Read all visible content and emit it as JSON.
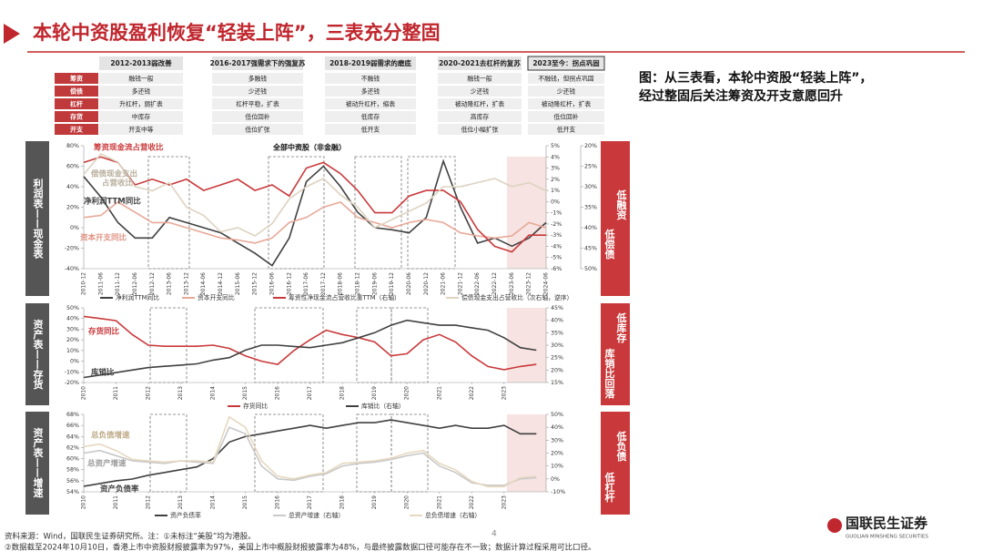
{
  "header": {
    "title": "本轮中资股盈利恢复“轻装上阵”，三表充分整固"
  },
  "periods": [
    "2012-2013弱改善",
    "2016-2017强需求下的强复苏",
    "2018-2019弱需求的磨底",
    "2020-2021去杠杆的复苏",
    "2023至今：拐点巩固"
  ],
  "table": {
    "row_labels": [
      "筹资",
      "偿债",
      "杠杆",
      "存货",
      "开支"
    ],
    "rows": [
      [
        "融钱一般",
        "多融钱",
        "不融钱",
        "融钱一般",
        "不融钱，但拐点巩固"
      ],
      [
        "多还钱",
        "少还钱",
        "多还钱",
        "少还钱",
        "少还钱"
      ],
      [
        "升杠杆，弱扩表",
        "杠杆平稳，扩表",
        "被动升杠杆，缩表",
        "被动降杠杆，扩表",
        "被动降杠杆，扩表"
      ],
      [
        "中库存",
        "低位回补",
        "低库存",
        "高库存",
        "低位回补"
      ],
      [
        "开支中等",
        "低位扩张",
        "低开支",
        "低位小幅扩张",
        "低开支"
      ]
    ]
  },
  "caption": [
    "图：从三表看，本轮中资股“轻装上阵”，",
    "经过整固后关注筹资及开支意愿回升"
  ],
  "side_labels": {
    "left": [
      "利润表——现金表",
      "资产表——存货",
      "资产表——增速"
    ],
    "right": [
      [
        "低融资",
        "低偿债"
      ],
      [
        "低库存",
        "库销比回落"
      ],
      [
        "低负债",
        "低杠杆"
      ]
    ]
  },
  "chart_data": [
    {
      "type": "line",
      "title": "全部中资股（非金融）",
      "categories": [
        "2010-12",
        "2011-06",
        "2011-12",
        "2012-06",
        "2012-12",
        "2013-06",
        "2013-12",
        "2014-06",
        "2014-12",
        "2015-06",
        "2015-12",
        "2016-06",
        "2016-12",
        "2017-06",
        "2017-12",
        "2018-06",
        "2018-12",
        "2019-06",
        "2019-12",
        "2020-06",
        "2020-12",
        "2021-06",
        "2021-12",
        "2022-06",
        "2022-12",
        "2023-06",
        "2023-12",
        "2024-06"
      ],
      "ylim": [
        -40,
        80
      ],
      "yticks": [
        {
          "value": -40,
          "label": "-40%"
        },
        {
          "value": -20,
          "label": "-20%"
        },
        {
          "value": 0,
          "label": "0%"
        },
        {
          "value": 20,
          "label": "20%"
        },
        {
          "value": 40,
          "label": "40%"
        },
        {
          "value": 60,
          "label": "60%"
        },
        {
          "value": 80,
          "label": "80%"
        }
      ],
      "y2lim": [
        -6,
        5
      ],
      "y2ticks": [
        {
          "value": 5,
          "label": "5%"
        },
        {
          "value": 4,
          "label": "4%"
        },
        {
          "value": 3,
          "label": "3%"
        },
        {
          "value": 2,
          "label": "2%"
        },
        {
          "value": 1,
          "label": "1%"
        },
        {
          "value": 0,
          "label": "0%"
        },
        {
          "value": -1,
          "label": "-1%"
        },
        {
          "value": -2,
          "label": "-2%"
        },
        {
          "value": -3,
          "label": "-3%"
        },
        {
          "value": -4,
          "label": "-4%"
        },
        {
          "value": -5,
          "label": "-5%"
        },
        {
          "value": -6,
          "label": "-6%"
        }
      ],
      "y3lim": [
        50,
        20
      ],
      "y3ticks": [
        {
          "value": 20,
          "label": "20%"
        },
        {
          "value": 25,
          "label": "25%"
        },
        {
          "value": 30,
          "label": "30%"
        },
        {
          "value": 35,
          "label": "35%"
        },
        {
          "value": 40,
          "label": "40%"
        },
        {
          "value": 45,
          "label": "45%"
        },
        {
          "value": 50,
          "label": "50%"
        }
      ],
      "series": [
        {
          "name": "净利润TTM同比",
          "color": "#404040",
          "values": [
            50,
            30,
            5,
            -10,
            -10,
            10,
            5,
            0,
            -5,
            -15,
            -25,
            -37,
            -10,
            45,
            60,
            40,
            15,
            0,
            -2,
            -5,
            10,
            65,
            20,
            -15,
            -10,
            -18,
            -10,
            5
          ]
        },
        {
          "name": "资本开支同比",
          "color": "#e8a898",
          "values": [
            10,
            12,
            25,
            15,
            5,
            5,
            0,
            -5,
            -10,
            -12,
            -15,
            -10,
            5,
            10,
            20,
            25,
            10,
            5,
            0,
            5,
            8,
            5,
            -5,
            -8,
            -10,
            -8,
            5,
            0
          ]
        },
        {
          "name": "筹资性净现金流占营收比重TTM（右轴）",
          "color": "#c9393b",
          "axis": "y2",
          "values": [
            3.5,
            4,
            3.5,
            1.5,
            2,
            1.5,
            2,
            1,
            1.5,
            2,
            1,
            1.5,
            0.5,
            3,
            3.5,
            2.5,
            1,
            -1,
            -1,
            0.5,
            1,
            1,
            0,
            -2.5,
            -4,
            -4.5,
            -3,
            -3
          ]
        },
        {
          "name": "偿债现金支出占营收比（次右轴，逆序）",
          "color": "#ddd3c0",
          "axis": "y3",
          "values": [
            27,
            22,
            24,
            30,
            31,
            29,
            35,
            37,
            41,
            40,
            42,
            39,
            33,
            30,
            28,
            32,
            35,
            40,
            38,
            36,
            34,
            30,
            30,
            29,
            28,
            30,
            29,
            31
          ]
        }
      ],
      "annotations": [
        "筹资现金流占营收比",
        "偿债现金支出",
        "占营收比",
        "净利润TTM同比",
        "资本开支同比"
      ]
    },
    {
      "type": "line",
      "x": [
        2010,
        2010.5,
        2011,
        2011.5,
        2012,
        2012.5,
        2013,
        2013.5,
        2014,
        2014.5,
        2015,
        2015.5,
        2016,
        2016.5,
        2017,
        2017.5,
        2018,
        2018.5,
        2019,
        2019.5,
        2020,
        2020.5,
        2021,
        2021.5,
        2022,
        2022.5,
        2023,
        2023.5,
        2024
      ],
      "xlim": [
        2010,
        2024.3
      ],
      "xticks": [
        2010,
        2011,
        2012,
        2013,
        2014,
        2015,
        2016,
        2017,
        2018,
        2019,
        2020,
        2021,
        2022,
        2023
      ],
      "ylim": [
        -20,
        50
      ],
      "yticks": [
        {
          "value": -20,
          "label": "-20%"
        },
        {
          "value": -10,
          "label": "-10%"
        },
        {
          "value": 0,
          "label": "0%"
        },
        {
          "value": 10,
          "label": "10%"
        },
        {
          "value": 20,
          "label": "20%"
        },
        {
          "value": 30,
          "label": "30%"
        },
        {
          "value": 40,
          "label": "40%"
        },
        {
          "value": 50,
          "label": "50%"
        }
      ],
      "y2lim": [
        15,
        45
      ],
      "y2ticks": [
        {
          "value": 15,
          "label": "15%"
        },
        {
          "value": 20,
          "label": "20%"
        },
        {
          "value": 25,
          "label": "25%"
        },
        {
          "value": 30,
          "label": "30%"
        },
        {
          "value": 35,
          "label": "35%"
        },
        {
          "value": 40,
          "label": "40%"
        },
        {
          "value": 45,
          "label": "45%"
        }
      ],
      "series": [
        {
          "name": "存货同比",
          "color": "#c9393b",
          "values": [
            42,
            40,
            38,
            25,
            15,
            14,
            14,
            14,
            15,
            12,
            5,
            0,
            -3,
            10,
            20,
            29,
            25,
            22,
            18,
            5,
            7,
            20,
            25,
            18,
            5,
            -5,
            -8,
            -5,
            -3
          ]
        },
        {
          "name": "库销比（右轴）",
          "color": "#404040",
          "axis": "y2",
          "values": [
            17,
            18,
            19,
            20,
            21,
            21.5,
            22,
            22.5,
            24,
            25,
            28,
            30,
            30,
            29.5,
            29,
            30,
            31,
            33,
            35,
            38,
            40,
            39,
            38,
            38,
            37,
            36,
            33,
            29,
            28
          ]
        }
      ],
      "annotations": [
        "存货同比",
        "库销比"
      ]
    },
    {
      "type": "line",
      "x": [
        2010,
        2010.5,
        2011,
        2011.5,
        2012,
        2012.5,
        2013,
        2013.5,
        2014,
        2014.5,
        2015,
        2015.5,
        2016,
        2016.5,
        2017,
        2017.5,
        2018,
        2018.5,
        2019,
        2019.5,
        2020,
        2020.5,
        2021,
        2021.5,
        2022,
        2022.5,
        2023,
        2023.5,
        2024
      ],
      "xlim": [
        2010,
        2024.3
      ],
      "xticks": [
        2010,
        2011,
        2012,
        2013,
        2014,
        2015,
        2016,
        2017,
        2018,
        2019,
        2020,
        2021,
        2022,
        2023
      ],
      "ylim": [
        54,
        68
      ],
      "yticks": [
        {
          "value": 54,
          "label": "54%"
        },
        {
          "value": 56,
          "label": "56%"
        },
        {
          "value": 58,
          "label": "58%"
        },
        {
          "value": 60,
          "label": "60%"
        },
        {
          "value": 62,
          "label": "62%"
        },
        {
          "value": 64,
          "label": "64%"
        },
        {
          "value": 66,
          "label": "66%"
        },
        {
          "value": 68,
          "label": "68%"
        }
      ],
      "y2lim": [
        -10,
        50
      ],
      "y2ticks": [
        {
          "value": -10,
          "label": "-10%"
        },
        {
          "value": 0,
          "label": "0%"
        },
        {
          "value": 10,
          "label": "10%"
        },
        {
          "value": 20,
          "label": "20%"
        },
        {
          "value": 30,
          "label": "30%"
        },
        {
          "value": 40,
          "label": "40%"
        },
        {
          "value": 50,
          "label": "50%"
        }
      ],
      "series": [
        {
          "name": "资产负债率",
          "color": "#404040",
          "values": [
            55,
            55.5,
            56,
            56.3,
            57,
            57.5,
            58,
            58.5,
            60,
            63,
            64,
            64.5,
            65,
            65.5,
            66,
            65.5,
            66,
            66.5,
            66.5,
            67,
            66.5,
            66,
            65.5,
            66,
            65.5,
            65.5,
            66,
            64.5,
            64.5
          ]
        },
        {
          "name": "总资产增速（右轴）",
          "color": "#c8c8c8",
          "axis": "y2",
          "values": [
            20,
            22,
            18,
            14,
            13,
            12,
            14,
            13,
            12,
            40,
            35,
            10,
            0,
            -1,
            2,
            4,
            10,
            12,
            13,
            15,
            18,
            20,
            10,
            5,
            -3,
            -5,
            -5,
            0,
            1
          ]
        },
        {
          "name": "总负债增速（右轴）",
          "color": "#e6d8c0",
          "axis": "y2",
          "values": [
            25,
            27,
            22,
            15,
            14,
            13,
            14,
            14,
            13,
            48,
            40,
            14,
            2,
            0,
            3,
            5,
            12,
            13,
            14,
            16,
            20,
            22,
            12,
            7,
            -2,
            -6,
            -6,
            1,
            2
          ]
        }
      ],
      "annotations": [
        "总负债增速",
        "总资产增速",
        "资产负债率"
      ]
    }
  ],
  "footer": {
    "source": "资料来源：Wind，国联民生证券研究所。注：①未标注“美股”均为港股。",
    "note": "②数据截至2024年10月10日，香港上市中资股财报披露率为97%，美国上市中概股财报披露率为48%，与最终披露数据口径可能存在不一致；数据计算过程采用可比口径。",
    "page": "4"
  },
  "logo": {
    "name": "国联民生证券",
    "en": "GUOLIAN MINSHENG SECURITIES"
  }
}
